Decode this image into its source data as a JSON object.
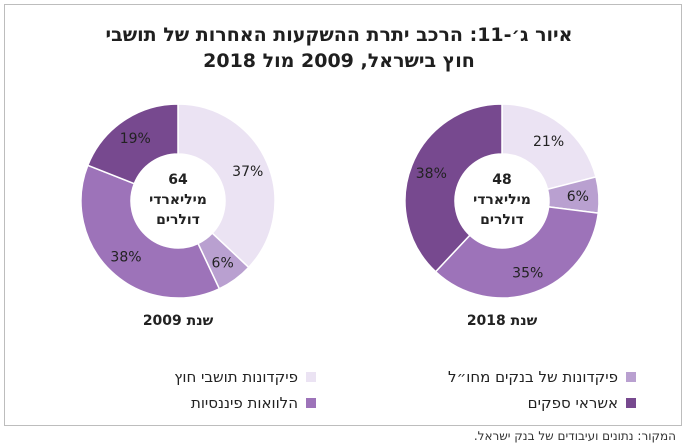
{
  "title": {
    "line1": "איור ג׳-11: הרכב יתרת ההשקעות האחרות של תושבי",
    "line2": "חוץ בישראל, 2009 מול 2018"
  },
  "legend": [
    {
      "label": "פיקדונות של בנקים מחו״ל",
      "color": "#b9a0d0"
    },
    {
      "label": "פיקדונות תושבי חוץ",
      "color": "#ebe3f3"
    },
    {
      "label": "אשראי ספקים",
      "color": "#77498f"
    },
    {
      "label": "הלוואות פיננסיות",
      "color": "#9d73b9"
    }
  ],
  "source": "המקור: נתונים ועיבודים של בנק ישראל.",
  "chart_data": [
    {
      "type": "pie",
      "donut": true,
      "title": "שנת 2018",
      "center_label": [
        "48",
        "מיליארדי",
        "דולרים"
      ],
      "slices": [
        {
          "label": "פיקדונות תושבי חוץ",
          "value": 21,
          "display": "21%",
          "color": "#ebe3f3"
        },
        {
          "label": "פיקדונות של בנקים מחו״ל",
          "value": 6,
          "display": "6%",
          "color": "#b9a0d0"
        },
        {
          "label": "הלוואות פיננסיות",
          "value": 35,
          "display": "35%",
          "color": "#9d73b9"
        },
        {
          "label": "אשראי ספקים",
          "value": 38,
          "display": "38%",
          "color": "#77498f"
        }
      ]
    },
    {
      "type": "pie",
      "donut": true,
      "title": "שנת 2009",
      "center_label": [
        "64",
        "מיליארדי",
        "דולרים"
      ],
      "slices": [
        {
          "label": "פיקדונות תושבי חוץ",
          "value": 37,
          "display": "37%",
          "color": "#ebe3f3"
        },
        {
          "label": "פיקדונות של בנקים מחו״ל",
          "value": 6,
          "display": "6%",
          "color": "#b9a0d0"
        },
        {
          "label": "הלוואות פיננסיות",
          "value": 38,
          "display": "38%",
          "color": "#9d73b9"
        },
        {
          "label": "אשראי ספקים",
          "value": 19,
          "display": "19%",
          "color": "#77498f"
        }
      ]
    }
  ]
}
